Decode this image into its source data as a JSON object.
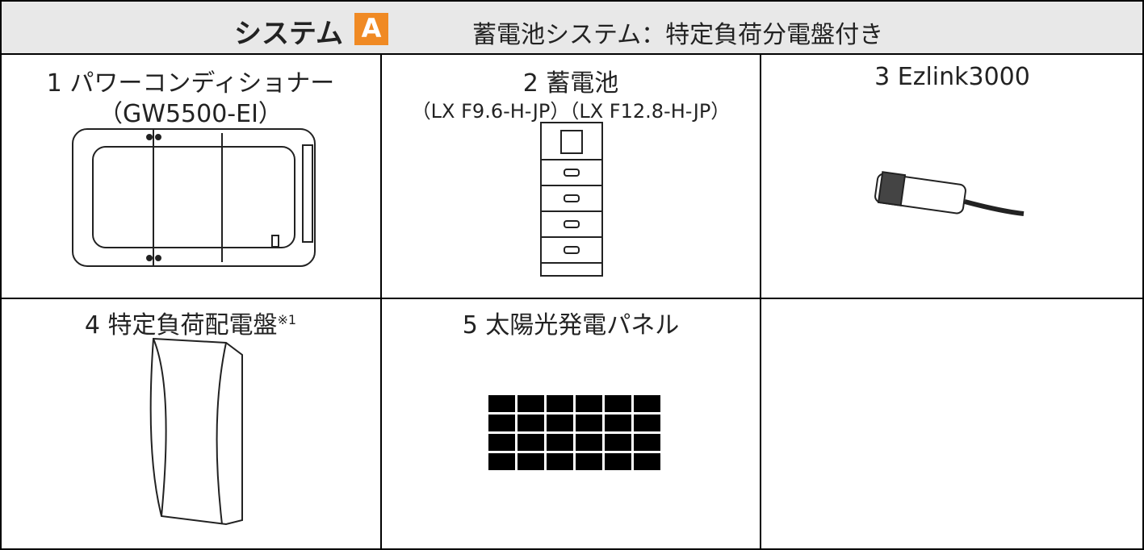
{
  "header": {
    "title": "システム",
    "badge": "A",
    "subtitle": "蓄電池システム：特定負荷分電盤付き"
  },
  "cells": [
    {
      "label": "1 パワーコンディショナー",
      "sublabel": "（GW5500-EI）"
    },
    {
      "label": "2 蓄電池",
      "sublabel": "（LX F9.6-H-JP）（LX F12.8-H-JP）"
    },
    {
      "label": "3 Ezlink3000"
    },
    {
      "label": "4 特定負荷配電盤",
      "note": "※1"
    },
    {
      "label": "5 太陽光発電パネル"
    }
  ]
}
